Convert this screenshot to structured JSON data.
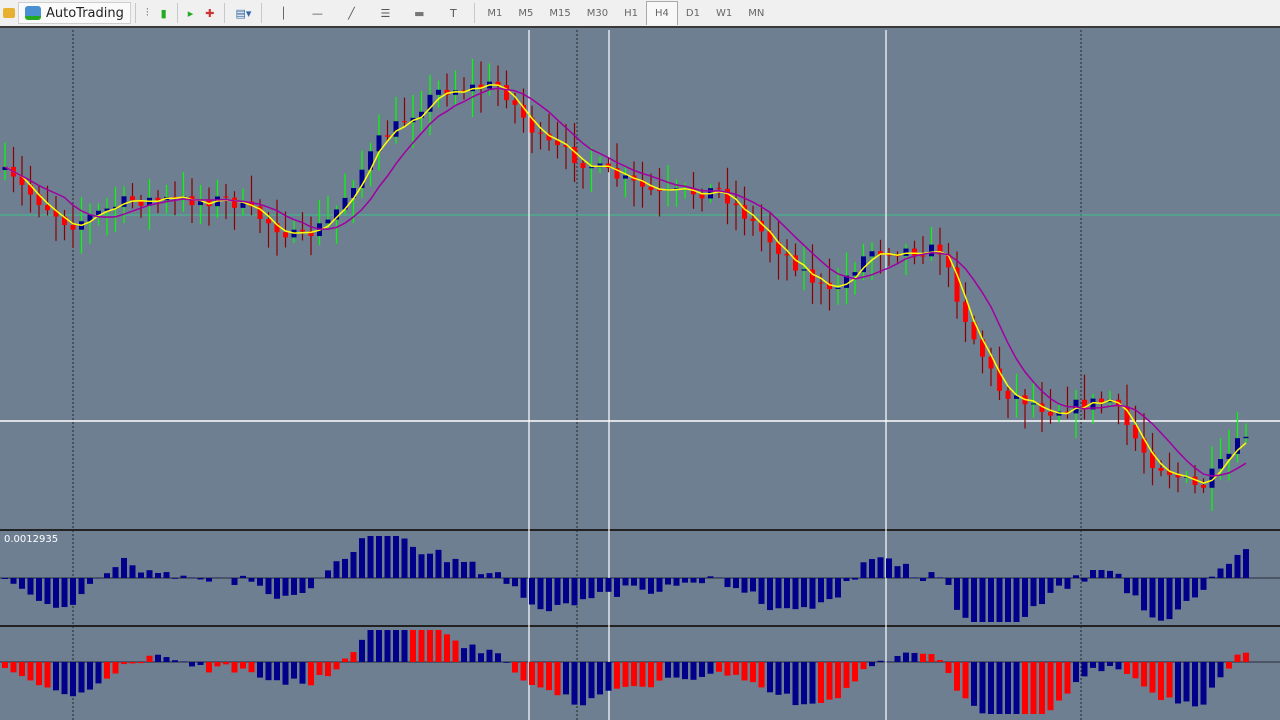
{
  "toolbar": {
    "autotrading_label": "AutoTrading",
    "tools": [
      "bar-chart-icon",
      "candlestick-icon",
      "chart-shift-icon",
      "autoscroll-icon",
      "indicators-icon",
      "vertical-line-icon",
      "horizontal-line-icon",
      "trendline-icon",
      "fibonacci-icon",
      "rectangle-icon",
      "text-icon"
    ],
    "timeframes": [
      "M1",
      "M5",
      "M15",
      "M30",
      "H1",
      "H4",
      "D1",
      "W1",
      "MN"
    ],
    "active_timeframe": "H4"
  },
  "indicator": {
    "value_label": "0.0012935"
  },
  "colors": {
    "background": "#6e7f92",
    "bull": "#00008b",
    "bear": "#ff0000",
    "fast_ma": "#ffff00",
    "slow_ma": "#a000a0",
    "wick_up": "#00ff00",
    "wick_down": "#8b0000"
  }
}
